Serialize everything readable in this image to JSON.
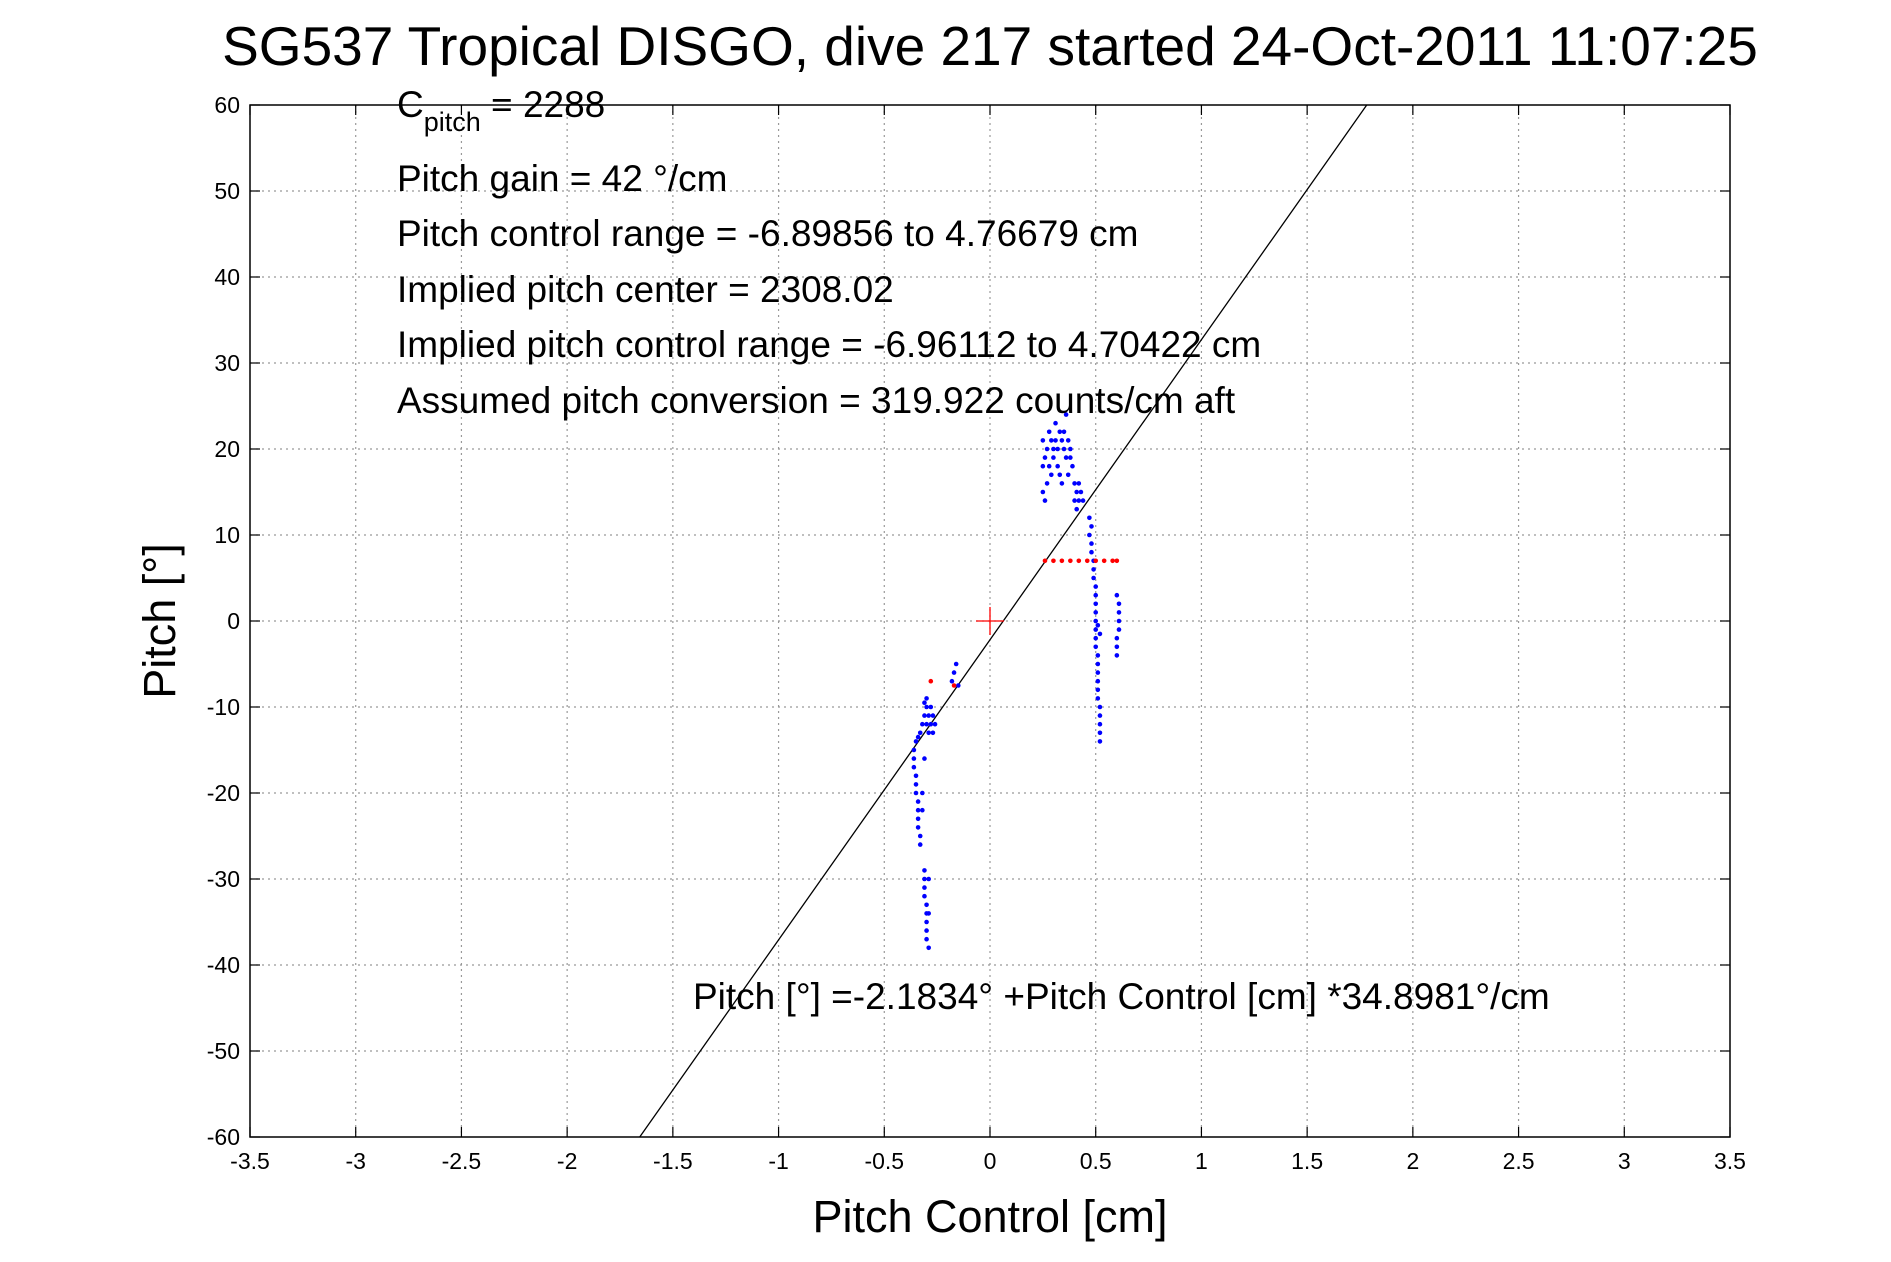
{
  "chart_data": {
    "type": "scatter",
    "title": "SG537 Tropical DISGO, dive 217 started 24-Oct-2011 11:07:25",
    "xlabel": "Pitch Control [cm]",
    "ylabel": "Pitch [°]",
    "xlim": [
      -3.5,
      3.5
    ],
    "ylim": [
      -60,
      60
    ],
    "xticks": [
      -3.5,
      -3,
      -2.5,
      -2,
      -1.5,
      -1,
      -0.5,
      0,
      0.5,
      1,
      1.5,
      2,
      2.5,
      3,
      3.5
    ],
    "xtick_labels": [
      "-3.5",
      "-3",
      "-2.5",
      "-2",
      "-1.5",
      "-1",
      "-0.5",
      "0",
      "0.5",
      "1",
      "1.5",
      "2",
      "2.5",
      "3",
      "3.5"
    ],
    "yticks": [
      -60,
      -50,
      -40,
      -30,
      -20,
      -10,
      0,
      10,
      20,
      30,
      40,
      50,
      60
    ],
    "ytick_labels": [
      "-60",
      "-50",
      "-40",
      "-30",
      "-20",
      "-10",
      "0",
      "10",
      "20",
      "30",
      "40",
      "50",
      "60"
    ],
    "grid": true,
    "grid_style": "dotted",
    "colors": {
      "observed": "#0000ff",
      "flagged": "#ff0000",
      "fit_line": "#000000",
      "center_marker": "#ff0000"
    },
    "fit_line": {
      "intercept": -2.1834,
      "slope": 34.8981
    },
    "center_marker": {
      "x": 0,
      "y": 0,
      "symbol": "+"
    },
    "annotations": {
      "c_pitch_main": "C",
      "c_pitch_sub": "pitch",
      "c_pitch_value": " = 2288",
      "gain": "Pitch gain = 42 °/cm",
      "control_range": "Pitch control range = -6.89856 to 4.76679 cm",
      "implied_center": "Implied pitch center = 2308.02",
      "implied_range": "Implied pitch control range = -6.96112 to 4.70422 cm",
      "conversion": "Assumed pitch conversion = 319.922 counts/cm aft",
      "fit_equation": "Pitch [°] =-2.1834° +Pitch Control [cm] *34.8981°/cm"
    },
    "series": [
      {
        "color": "#0000ff",
        "points": [
          [
            -0.36,
            -15
          ],
          [
            -0.35,
            -14
          ],
          [
            -0.34,
            -13.5
          ],
          [
            -0.33,
            -13
          ],
          [
            -0.32,
            -12
          ],
          [
            -0.31,
            -11
          ],
          [
            -0.3,
            -10
          ],
          [
            -0.3,
            -12
          ],
          [
            -0.29,
            -11
          ],
          [
            -0.29,
            -13
          ],
          [
            -0.28,
            -12
          ],
          [
            -0.28,
            -10
          ],
          [
            -0.27,
            -11
          ],
          [
            -0.27,
            -13
          ],
          [
            -0.26,
            -12
          ],
          [
            -0.31,
            -9.5
          ],
          [
            -0.3,
            -9
          ],
          [
            -0.36,
            -16
          ],
          [
            -0.36,
            -17
          ],
          [
            -0.35,
            -18
          ],
          [
            -0.35,
            -19
          ],
          [
            -0.35,
            -20
          ],
          [
            -0.34,
            -21
          ],
          [
            -0.34,
            -22
          ],
          [
            -0.34,
            -23
          ],
          [
            -0.34,
            -24
          ],
          [
            -0.33,
            -25
          ],
          [
            -0.33,
            -26
          ],
          [
            -0.32,
            -22
          ],
          [
            -0.32,
            -20
          ],
          [
            -0.31,
            -16
          ],
          [
            -0.31,
            -29
          ],
          [
            -0.31,
            -30
          ],
          [
            -0.31,
            -31
          ],
          [
            -0.31,
            -32
          ],
          [
            -0.3,
            -33
          ],
          [
            -0.3,
            -34
          ],
          [
            -0.3,
            -35
          ],
          [
            -0.3,
            -36
          ],
          [
            -0.3,
            -37
          ],
          [
            -0.29,
            -38
          ],
          [
            -0.29,
            -34
          ],
          [
            -0.29,
            -30
          ],
          [
            -0.18,
            -7
          ],
          [
            -0.17,
            -6
          ],
          [
            -0.16,
            -5
          ],
          [
            -0.15,
            -7.5
          ],
          [
            0.25,
            21
          ],
          [
            0.25,
            18
          ],
          [
            0.25,
            15
          ],
          [
            0.26,
            19
          ],
          [
            0.26,
            14
          ],
          [
            0.27,
            20
          ],
          [
            0.27,
            16
          ],
          [
            0.28,
            22
          ],
          [
            0.28,
            18
          ],
          [
            0.29,
            21
          ],
          [
            0.29,
            17
          ],
          [
            0.3,
            20
          ],
          [
            0.3,
            19
          ],
          [
            0.31,
            21
          ],
          [
            0.31,
            23
          ],
          [
            0.32,
            20
          ],
          [
            0.32,
            18
          ],
          [
            0.33,
            22
          ],
          [
            0.33,
            17
          ],
          [
            0.34,
            21
          ],
          [
            0.34,
            16
          ],
          [
            0.35,
            20
          ],
          [
            0.35,
            22
          ],
          [
            0.36,
            24
          ],
          [
            0.36,
            19
          ],
          [
            0.37,
            21
          ],
          [
            0.37,
            17
          ],
          [
            0.38,
            20
          ],
          [
            0.38,
            19
          ],
          [
            0.39,
            18
          ],
          [
            0.4,
            16
          ],
          [
            0.4,
            14
          ],
          [
            0.41,
            15
          ],
          [
            0.41,
            13
          ],
          [
            0.42,
            16
          ],
          [
            0.42,
            14
          ],
          [
            0.43,
            15
          ],
          [
            0.44,
            14
          ],
          [
            0.47,
            12
          ],
          [
            0.47,
            10
          ],
          [
            0.48,
            11
          ],
          [
            0.48,
            9
          ],
          [
            0.48,
            8
          ],
          [
            0.49,
            7
          ],
          [
            0.49,
            6
          ],
          [
            0.49,
            5
          ],
          [
            0.5,
            4
          ],
          [
            0.5,
            3
          ],
          [
            0.5,
            2
          ],
          [
            0.5,
            1
          ],
          [
            0.5,
            0
          ],
          [
            0.5,
            -1
          ],
          [
            0.5,
            -2
          ],
          [
            0.5,
            -3
          ],
          [
            0.51,
            -4
          ],
          [
            0.51,
            -5
          ],
          [
            0.51,
            -6
          ],
          [
            0.51,
            -7
          ],
          [
            0.51,
            -8
          ],
          [
            0.51,
            -9
          ],
          [
            0.52,
            -10
          ],
          [
            0.52,
            -11
          ],
          [
            0.52,
            -12
          ],
          [
            0.52,
            -13
          ],
          [
            0.52,
            -14
          ],
          [
            0.52,
            -1.5
          ],
          [
            0.51,
            -0.5
          ],
          [
            0.6,
            -4
          ],
          [
            0.6,
            -3
          ],
          [
            0.6,
            -2
          ],
          [
            0.61,
            -1
          ],
          [
            0.61,
            0
          ],
          [
            0.61,
            1
          ],
          [
            0.61,
            2
          ],
          [
            0.6,
            3
          ]
        ]
      },
      {
        "color": "#ff0000",
        "points": [
          [
            0.26,
            7
          ],
          [
            0.3,
            7
          ],
          [
            0.34,
            7
          ],
          [
            0.38,
            7
          ],
          [
            0.42,
            7
          ],
          [
            0.46,
            7
          ],
          [
            0.5,
            7
          ],
          [
            0.54,
            7
          ],
          [
            0.58,
            7
          ],
          [
            0.6,
            7
          ],
          [
            -0.28,
            -7
          ],
          [
            -0.17,
            -7.5
          ]
        ]
      }
    ]
  }
}
